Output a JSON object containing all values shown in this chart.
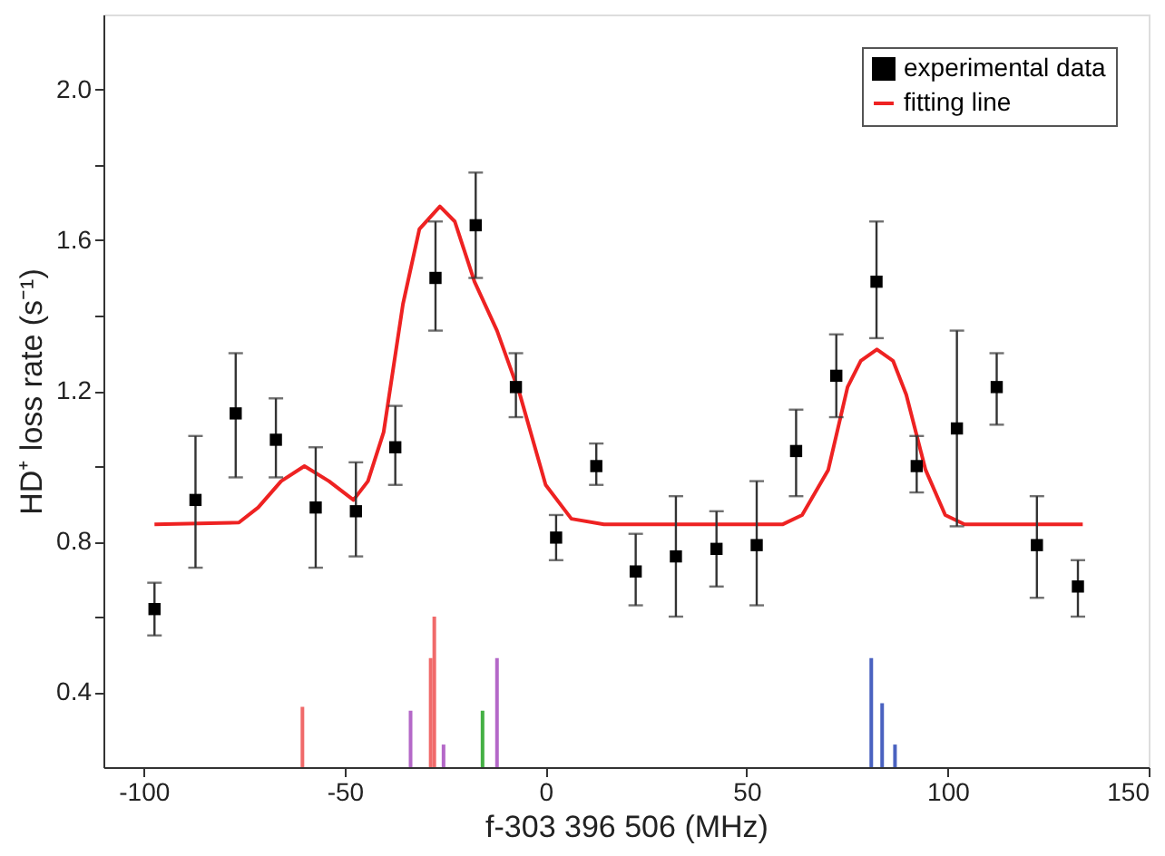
{
  "chart_data": {
    "type": "scatter",
    "xlabel": "f-303 396 506 (MHz)",
    "ylabel": "HD⁺ loss rate (s⁻¹)",
    "xlim": [
      -110,
      150
    ],
    "xticks": [
      -100,
      -50,
      0,
      50,
      100,
      150
    ],
    "ylim": [
      0.2,
      2.2
    ],
    "yticks": [
      0.4,
      {
        "value": 0.6,
        "label": null
      },
      0.8,
      {
        "value": 1.0,
        "label": null
      },
      1.2,
      {
        "value": 1.4,
        "label": null
      },
      1.6,
      {
        "value": 1.8,
        "label": null
      },
      {
        "value": 2.0,
        "label": "2.0"
      }
    ],
    "legend": "top right",
    "grid": false,
    "series": [
      {
        "name": "experimental data",
        "type": "scatter",
        "marker": "square",
        "color": "#000000",
        "x": [
          -97.3,
          -87.1,
          -77.1,
          -67.1,
          -57.2,
          -47.2,
          -37.4,
          -27.4,
          -17.4,
          -7.4,
          2.6,
          12.6,
          22.4,
          32.4,
          42.5,
          52.5,
          62.3,
          72.3,
          82.3,
          92.3,
          102.3,
          112.2,
          122.2,
          132.4
        ],
        "values": [
          0.62,
          0.91,
          1.14,
          1.07,
          0.89,
          0.88,
          1.05,
          1.5,
          1.64,
          1.21,
          0.81,
          1.0,
          0.72,
          0.76,
          0.78,
          0.79,
          1.04,
          1.24,
          1.49,
          1.0,
          1.1,
          1.21,
          0.79,
          0.68
        ],
        "errors": [
          [
            0.55,
            0.69
          ],
          [
            0.73,
            1.08
          ],
          [
            0.97,
            1.3
          ],
          [
            0.97,
            1.18
          ],
          [
            0.73,
            1.05
          ],
          [
            0.76,
            1.01
          ],
          [
            0.95,
            1.16
          ],
          [
            1.36,
            1.65
          ],
          [
            1.5,
            1.78
          ],
          [
            1.13,
            1.3
          ],
          [
            0.75,
            0.87
          ],
          [
            0.95,
            1.06
          ],
          [
            0.63,
            0.82
          ],
          [
            0.6,
            0.92
          ],
          [
            0.68,
            0.88
          ],
          [
            0.63,
            0.96
          ],
          [
            0.92,
            1.15
          ],
          [
            1.13,
            1.35
          ],
          [
            1.34,
            1.65
          ],
          [
            0.93,
            1.08
          ],
          [
            0.84,
            1.36
          ],
          [
            1.11,
            1.3
          ],
          [
            0.65,
            0.92
          ],
          [
            0.6,
            0.75
          ]
        ]
      },
      {
        "name": "fitting line",
        "type": "line",
        "color": "#ee2222",
        "x": [
          -97.3,
          -76.3,
          -71.5,
          -65.8,
          -60.0,
          -53.9,
          -47.8,
          -44.2,
          -40.3,
          -35.5,
          -31.4,
          -26.3,
          -22.6,
          -17.7,
          -12.1,
          -6.4,
          0.0,
          6.4,
          14.5,
          58.9,
          63.8,
          70.3,
          75.1,
          78.4,
          82.4,
          86.4,
          89.7,
          94.5,
          99.4,
          104.2,
          133.6
        ],
        "values": [
          0.845,
          0.85,
          0.89,
          0.96,
          1.0,
          0.96,
          0.91,
          0.96,
          1.09,
          1.43,
          1.63,
          1.69,
          1.65,
          1.49,
          1.36,
          1.19,
          0.95,
          0.86,
          0.845,
          0.845,
          0.87,
          0.99,
          1.21,
          1.28,
          1.31,
          1.28,
          1.19,
          0.99,
          0.87,
          0.845,
          0.845
        ]
      },
      {
        "type": "bar",
        "color": "#f06a6a",
        "x": [
          -60.5,
          -28.6,
          -27.7
        ],
        "values": [
          0.36,
          0.49,
          0.6
        ]
      },
      {
        "type": "bar",
        "color": "#b468c8",
        "x": [
          -33.6,
          -25.4,
          -12.1
        ],
        "values": [
          0.35,
          0.26,
          0.49
        ]
      },
      {
        "type": "bar",
        "color": "#44b044",
        "x": [
          -15.7
        ],
        "values": [
          0.35
        ]
      },
      {
        "type": "bar",
        "color": "#4a62c0",
        "x": [
          81.0,
          83.7,
          86.9
        ],
        "values": [
          0.49,
          0.37,
          0.26
        ]
      }
    ]
  }
}
